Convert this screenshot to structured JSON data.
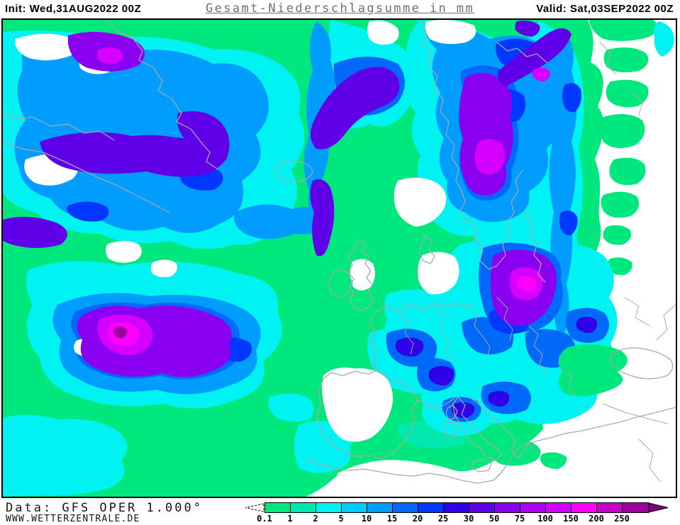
{
  "header": {
    "init": "Init: Wed,31AUG2022 00Z",
    "title": "Gesamt-Niederschlagsumme in mm",
    "valid": "Valid: Sat,03SEP2022 00Z"
  },
  "footer": {
    "data_source": "Data: GFS OPER 1.000°",
    "website": "WWW.WETTERZENTRALE.DE"
  },
  "legend": {
    "stops": [
      {
        "label": "0.1",
        "color": "#00E87D"
      },
      {
        "label": "1",
        "color": "#00E8AE"
      },
      {
        "label": "2",
        "color": "#00F2F2"
      },
      {
        "label": "5",
        "color": "#00CCFF"
      },
      {
        "label": "10",
        "color": "#009DFF"
      },
      {
        "label": "15",
        "color": "#0069FA"
      },
      {
        "label": "20",
        "color": "#0038FF"
      },
      {
        "label": "25",
        "color": "#2F00E8"
      },
      {
        "label": "30",
        "color": "#6000E8"
      },
      {
        "label": "50",
        "color": "#8A00F0"
      },
      {
        "label": "75",
        "color": "#AE00F5"
      },
      {
        "label": "100",
        "color": "#D500FF"
      },
      {
        "label": "150",
        "color": "#FF00FF"
      },
      {
        "label": "200",
        "color": "#C800C8"
      },
      {
        "label": "250",
        "color": "#A000A0"
      }
    ],
    "overflow_color": "#7D007D"
  },
  "map": {
    "background_color": "#FFFFFF",
    "coastline_color": "#A8A8A8",
    "palette": {
      "pg": "#00E87D",
      "pt": "#00E8AE",
      "pc": "#00F2F2",
      "pb1": "#00CCFF",
      "pb2": "#009DFF",
      "pb3": "#0069FA",
      "pb4": "#0038FF",
      "pb5": "#2F00E8",
      "pv1": "#6000E8",
      "pv2": "#8A00F0",
      "pv3": "#AE00F5",
      "pm1": "#D500FF",
      "pm2": "#FF00FF",
      "pm3": "#C800C8",
      "pm4": "#A000A0",
      "pw": "#FFFFFF"
    }
  }
}
